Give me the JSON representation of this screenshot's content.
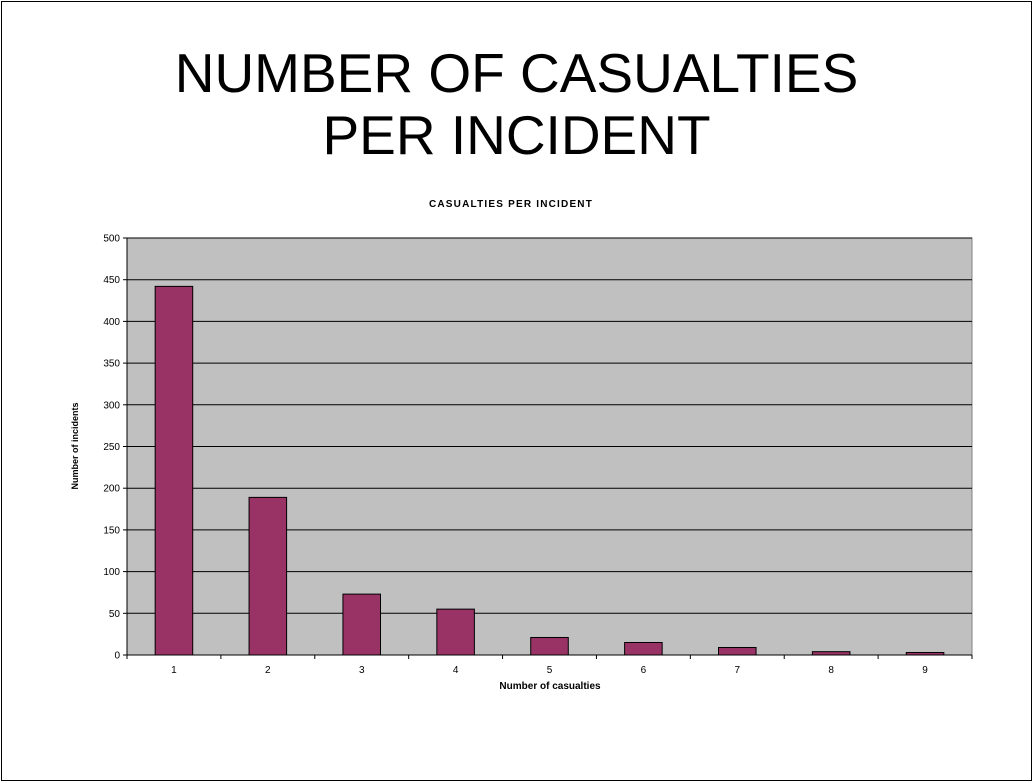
{
  "slide": {
    "title": "NUMBER OF CASUALTIES PER INCIDENT"
  },
  "chart_data": {
    "type": "bar",
    "title": "CASUALTIES PER INCIDENT",
    "xlabel": "Number of casualties",
    "ylabel": "Number of incidents",
    "categories": [
      "1",
      "2",
      "3",
      "4",
      "5",
      "6",
      "7",
      "8",
      "9"
    ],
    "values": [
      442,
      189,
      73,
      55,
      21,
      15,
      9,
      4,
      3
    ],
    "ylim": [
      0,
      500
    ],
    "yticks": [
      0,
      50,
      100,
      150,
      200,
      250,
      300,
      350,
      400,
      450,
      500
    ],
    "grid": true,
    "legend": "none",
    "colors": {
      "bar": "#993366",
      "plot_background": "#c0c0c0",
      "gridline": "#000000"
    }
  }
}
